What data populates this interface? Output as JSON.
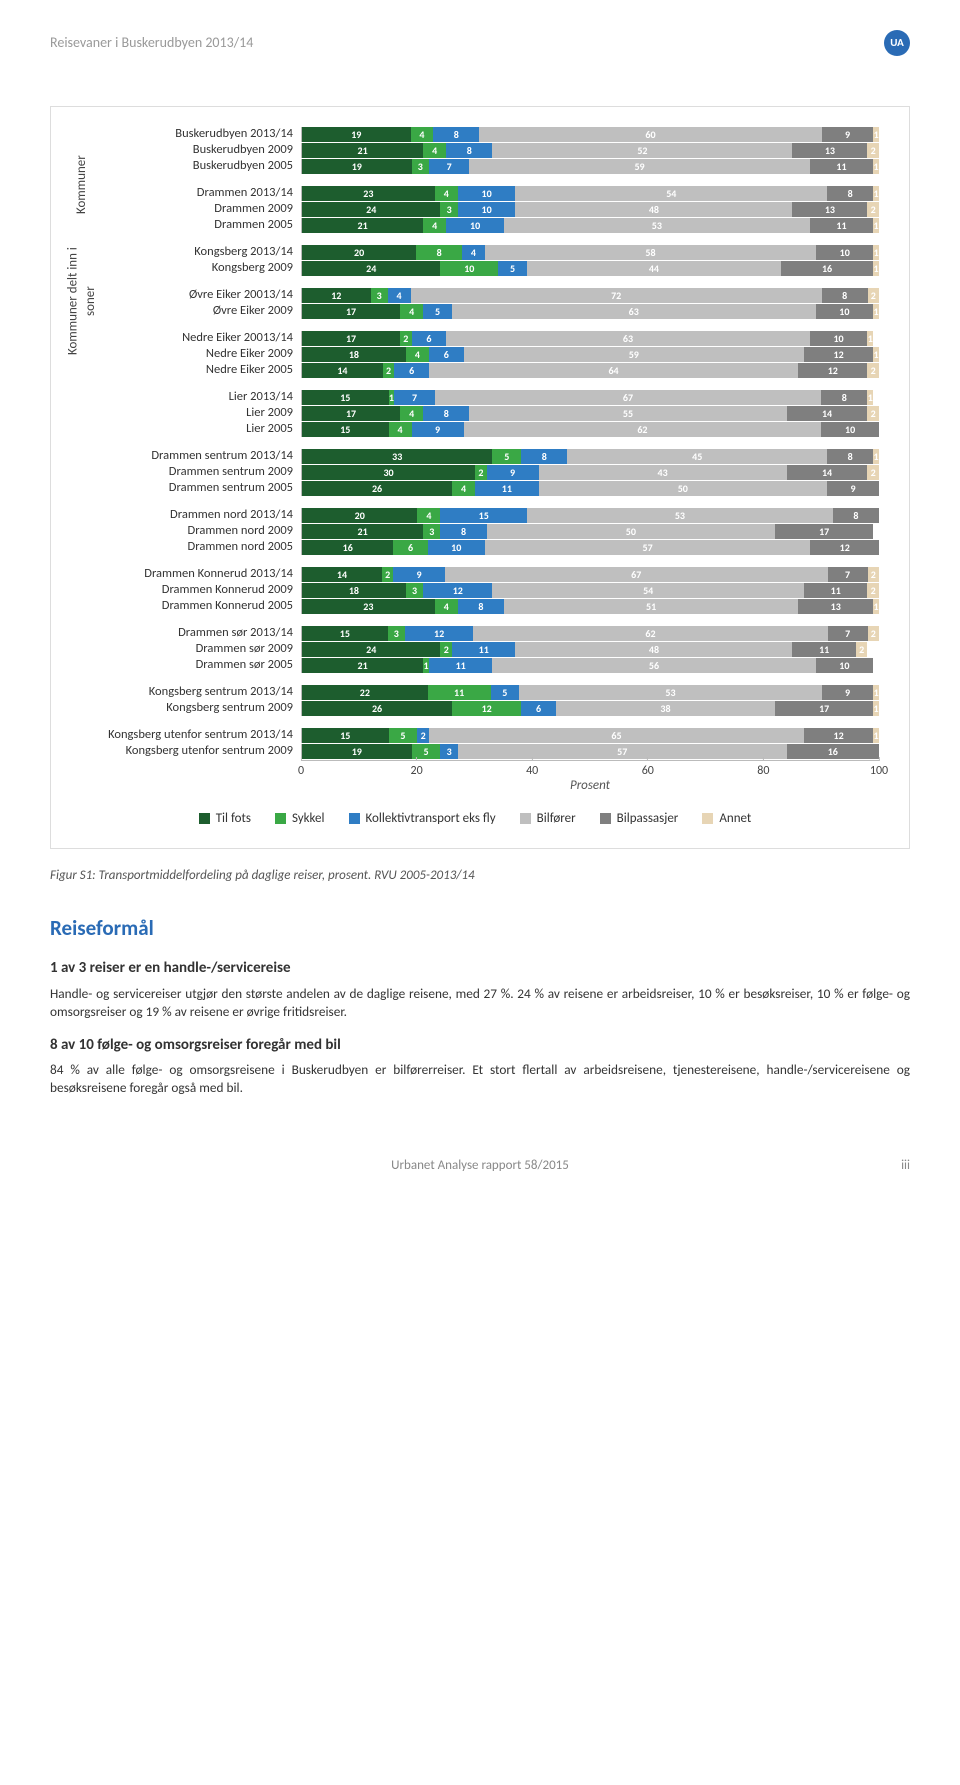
{
  "header": {
    "title": "Reisevaner i Buskerudbyen 2013/14",
    "badge": "UA"
  },
  "footer": {
    "left": "Urbanet Analyse rapport 58/2015",
    "right": "iii"
  },
  "caption": "Figur S1: Transportmiddelfordeling på daglige reiser, prosent. RVU 2005-2013/14",
  "section": {
    "title": "Reiseformål",
    "sub1": "1 av 3 reiser er en handle-/servicereise",
    "p1": "Handle- og servicereiser utgjør den største andelen av de daglige reisene, med 27 %. 24 % av reisene er arbeidsreiser, 10 % er besøksreiser, 10 % er følge- og omsorgsreiser og 19 % av reisene er øvrige fritidsreiser.",
    "sub2": "8 av 10 følge- og omsorgsreiser foregår med bil",
    "p2": "84 % av alle følge- og omsorgsreisene i Buskerudbyen er bilførerreiser. Et stort flertall av arbeidsreisene, tjenestereisene, handle-/servicereisene og besøksreisene foregår også med bil."
  },
  "chart": {
    "type": "stacked-horizontal-bar",
    "xlim": [
      0,
      100
    ],
    "xtick_step": 20,
    "xticks": [
      "0",
      "20",
      "40",
      "60",
      "80",
      "100"
    ],
    "xtitle": "Prosent",
    "series_colors": [
      "#1d5d2e",
      "#3aa845",
      "#2f7dc4",
      "#bfbfbf",
      "#7f7f7f",
      "#e7d5b5"
    ],
    "value_label_color": "#ffffff",
    "background": "#ffffff",
    "border_color": "#dddddd",
    "legend": [
      {
        "label": "Til fots",
        "color": "#1d5d2e"
      },
      {
        "label": "Sykkel",
        "color": "#3aa845"
      },
      {
        "label": "Kollektivtransport eks fly",
        "color": "#2f7dc4"
      },
      {
        "label": "Bilfører",
        "color": "#bfbfbf"
      },
      {
        "label": "Bilpassasjer",
        "color": "#7f7f7f"
      },
      {
        "label": "Annet",
        "color": "#e7d5b5"
      }
    ],
    "axis_groups": [
      {
        "label": "Kommuner",
        "span_groups": [
          0,
          1,
          2,
          3,
          4,
          5
        ]
      },
      {
        "label": "Kommuner delt inn i soner",
        "span_groups": [
          6,
          7,
          8,
          9,
          10,
          11
        ]
      }
    ],
    "groups": [
      {
        "rows": [
          {
            "label": "Buskerudbyen 2013/14",
            "v": [
              19,
              4,
              8,
              60,
              9,
              1
            ]
          },
          {
            "label": "Buskerudbyen 2009",
            "v": [
              21,
              4,
              8,
              52,
              13,
              2
            ]
          },
          {
            "label": "Buskerudbyen 2005",
            "v": [
              19,
              3,
              7,
              59,
              11,
              1
            ]
          }
        ]
      },
      {
        "rows": [
          {
            "label": "Drammen 2013/14",
            "v": [
              23,
              4,
              10,
              54,
              8,
              1
            ]
          },
          {
            "label": "Drammen 2009",
            "v": [
              24,
              3,
              10,
              48,
              13,
              2
            ]
          },
          {
            "label": "Drammen 2005",
            "v": [
              21,
              4,
              10,
              53,
              11,
              1
            ]
          }
        ]
      },
      {
        "rows": [
          {
            "label": "Kongsberg 2013/14",
            "v": [
              20,
              8,
              4,
              58,
              10,
              1
            ]
          },
          {
            "label": "Kongsberg 2009",
            "v": [
              24,
              10,
              5,
              44,
              16,
              1
            ]
          }
        ]
      },
      {
        "rows": [
          {
            "label": "Øvre Eiker 20013/14",
            "v": [
              12,
              3,
              4,
              72,
              8,
              2
            ]
          },
          {
            "label": "Øvre Eiker 2009",
            "v": [
              17,
              4,
              5,
              63,
              10,
              1
            ]
          }
        ]
      },
      {
        "rows": [
          {
            "label": "Nedre Eiker 20013/14",
            "v": [
              17,
              2,
              6,
              63,
              10,
              1
            ]
          },
          {
            "label": "Nedre Eiker 2009",
            "v": [
              18,
              4,
              6,
              59,
              12,
              1
            ]
          },
          {
            "label": "Nedre Eiker 2005",
            "v": [
              14,
              2,
              6,
              64,
              12,
              2
            ]
          }
        ]
      },
      {
        "rows": [
          {
            "label": "Lier 2013/14",
            "v": [
              15,
              1,
              7,
              67,
              8,
              1
            ]
          },
          {
            "label": "Lier 2009",
            "v": [
              17,
              4,
              8,
              55,
              14,
              2
            ]
          },
          {
            "label": "Lier 2005",
            "v": [
              15,
              4,
              9,
              62,
              10,
              0
            ]
          }
        ]
      },
      {
        "rows": [
          {
            "label": "Drammen sentrum 2013/14",
            "v": [
              33,
              5,
              8,
              45,
              8,
              1
            ]
          },
          {
            "label": "Drammen sentrum 2009",
            "v": [
              30,
              2,
              9,
              43,
              14,
              2
            ]
          },
          {
            "label": "Drammen sentrum 2005",
            "v": [
              26,
              4,
              11,
              50,
              9,
              0
            ]
          }
        ]
      },
      {
        "rows": [
          {
            "label": "Drammen nord 2013/14",
            "v": [
              20,
              4,
              15,
              53,
              8,
              0
            ]
          },
          {
            "label": "Drammen nord 2009",
            "v": [
              21,
              3,
              8,
              50,
              17,
              0
            ]
          },
          {
            "label": "Drammen nord 2005",
            "v": [
              16,
              6,
              10,
              57,
              12,
              0
            ]
          }
        ]
      },
      {
        "rows": [
          {
            "label": "Drammen Konnerud 2013/14",
            "v": [
              14,
              2,
              9,
              67,
              7,
              2
            ]
          },
          {
            "label": "Drammen Konnerud 2009",
            "v": [
              18,
              3,
              12,
              54,
              11,
              2
            ]
          },
          {
            "label": "Drammen Konnerud 2005",
            "v": [
              23,
              4,
              8,
              51,
              13,
              1
            ]
          }
        ]
      },
      {
        "rows": [
          {
            "label": "Drammen sør 2013/14",
            "v": [
              15,
              3,
              12,
              62,
              7,
              2
            ]
          },
          {
            "label": "Drammen sør 2009",
            "v": [
              24,
              2,
              11,
              48,
              11,
              2
            ]
          },
          {
            "label": "Drammen sør 2005",
            "v": [
              21,
              1,
              11,
              56,
              10,
              0
            ]
          }
        ]
      },
      {
        "rows": [
          {
            "label": "Kongsberg sentrum 2013/14",
            "v": [
              22,
              11,
              5,
              53,
              9,
              1
            ]
          },
          {
            "label": "Kongsberg sentrum 2009",
            "v": [
              26,
              12,
              6,
              38,
              17,
              1
            ]
          }
        ]
      },
      {
        "rows": [
          {
            "label": "Kongsberg utenfor sentrum 2013/14",
            "v": [
              15,
              5,
              2,
              65,
              12,
              1
            ]
          },
          {
            "label": "Kongsberg utenfor sentrum 2009",
            "v": [
              19,
              5,
              3,
              57,
              16,
              0
            ]
          }
        ]
      }
    ]
  }
}
